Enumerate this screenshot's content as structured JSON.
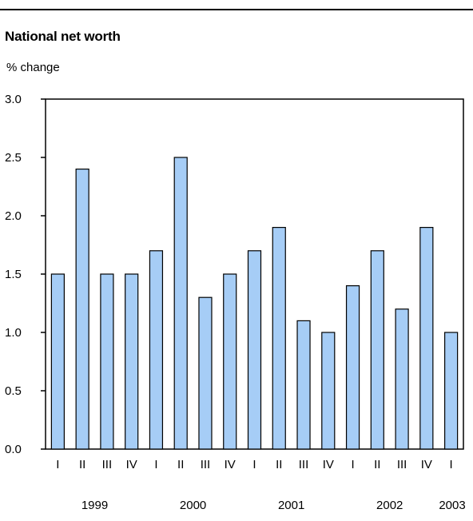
{
  "chart_data": {
    "type": "bar",
    "title": "National net worth",
    "subtitle": "% change",
    "xlabel": "",
    "ylabel": "",
    "ylim": [
      0,
      3
    ],
    "yticks": [
      "0.0",
      "0.5",
      "1.0",
      "1.5",
      "2.0",
      "2.5",
      "3.0"
    ],
    "categories": [
      "I",
      "II",
      "III",
      "IV",
      "I",
      "II",
      "III",
      "IV",
      "I",
      "II",
      "III",
      "IV",
      "I",
      "II",
      "III",
      "IV",
      "I"
    ],
    "years": [
      "1999",
      "2000",
      "2001",
      "2002",
      "2003"
    ],
    "values": [
      1.5,
      2.4,
      1.5,
      1.5,
      1.7,
      2.5,
      1.3,
      1.5,
      1.7,
      1.9,
      1.1,
      1.0,
      1.4,
      1.7,
      1.2,
      1.9,
      1.0
    ],
    "grid": false,
    "colors": {
      "bar_fill": "#a6cdf6",
      "bar_stroke": "#000000"
    }
  }
}
